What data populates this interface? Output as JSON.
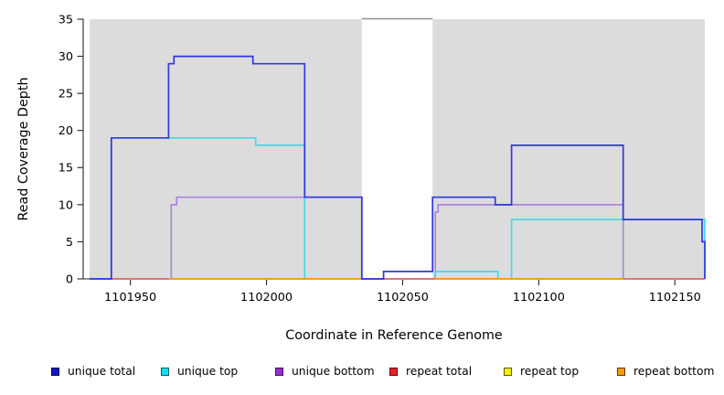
{
  "chart_data": {
    "type": "line",
    "subtype": "step",
    "title": "",
    "xlabel": "Coordinate in Reference Genome",
    "ylabel": "Read Coverage Depth",
    "x_ticks": [
      1101950,
      1102000,
      1102050,
      1102100,
      1102150
    ],
    "y_ticks": [
      0,
      5,
      10,
      15,
      20,
      25,
      30,
      35
    ],
    "x_domain": [
      1101935,
      1102161
    ],
    "ylim": [
      0,
      35
    ],
    "grid": false,
    "legend_position": "bottom",
    "masked_region_color": "#dcdcdc",
    "masked_region_top_line_color": "#8f8f8f",
    "masked_regions": [
      [
        1101935,
        1102035
      ],
      [
        1102061,
        1102161
      ]
    ],
    "unmasked_region": [
      1102035,
      1102061
    ],
    "axis_color": "#262626",
    "legend": [
      {
        "label": "unique total",
        "color": "#1414ce"
      },
      {
        "label": "unique top",
        "color": "#00e6f0"
      },
      {
        "label": "unique bottom",
        "color": "#9a2bd9"
      },
      {
        "label": "repeat total",
        "color": "#ee2222"
      },
      {
        "label": "repeat top",
        "color": "#f2f200"
      },
      {
        "label": "repeat bottom",
        "color": "#f59e00"
      }
    ],
    "series": [
      {
        "name": "unique bottom",
        "line_color": "#ac85df",
        "segments": [
          [
            [
              1101935,
              0
            ],
            [
              1101965,
              10
            ],
            [
              1101967,
              11
            ],
            [
              1102035,
              0
            ],
            [
              1102062,
              9
            ],
            [
              1102063,
              10
            ],
            [
              1102131,
              0
            ],
            [
              1102161,
              0
            ]
          ]
        ]
      },
      {
        "name": "unique top",
        "line_color": "#45d9e2",
        "segments": [
          [
            [
              1101935,
              0
            ],
            [
              1101943,
              19
            ],
            [
              1101996,
              18
            ],
            [
              1102014,
              0
            ],
            [
              1102062,
              1
            ],
            [
              1102085,
              0
            ],
            [
              1102090,
              8
            ],
            [
              1102161,
              0
            ]
          ]
        ]
      },
      {
        "name": "repeat top",
        "line_color": "#f2f200",
        "segments": [
          [
            [
              1101943,
              0
            ],
            [
              1102161,
              0
            ]
          ]
        ]
      },
      {
        "name": "repeat total",
        "line_color": "#e16380",
        "segments": [
          [
            [
              1101943,
              0
            ],
            [
              1102161,
              0
            ]
          ]
        ]
      },
      {
        "name": "repeat bottom",
        "line_color": "#f7a11a",
        "segments": [
          [
            [
              1101964,
              0
            ],
            [
              1102035,
              0
            ]
          ],
          [
            [
              1102062,
              0
            ],
            [
              1102131,
              0
            ]
          ]
        ]
      },
      {
        "name": "unique total",
        "line_color": "#3138de",
        "segments": [
          [
            [
              1101935,
              0
            ],
            [
              1101943,
              19
            ],
            [
              1101964,
              29
            ],
            [
              1101966,
              30
            ],
            [
              1101995,
              29
            ],
            [
              1102014,
              11
            ],
            [
              1102035,
              0
            ],
            [
              1102043,
              1
            ],
            [
              1102061,
              11
            ],
            [
              1102084,
              10
            ],
            [
              1102090,
              18
            ],
            [
              1102131,
              8
            ],
            [
              1102160,
              5
            ],
            [
              1102161,
              0
            ]
          ]
        ]
      }
    ]
  }
}
